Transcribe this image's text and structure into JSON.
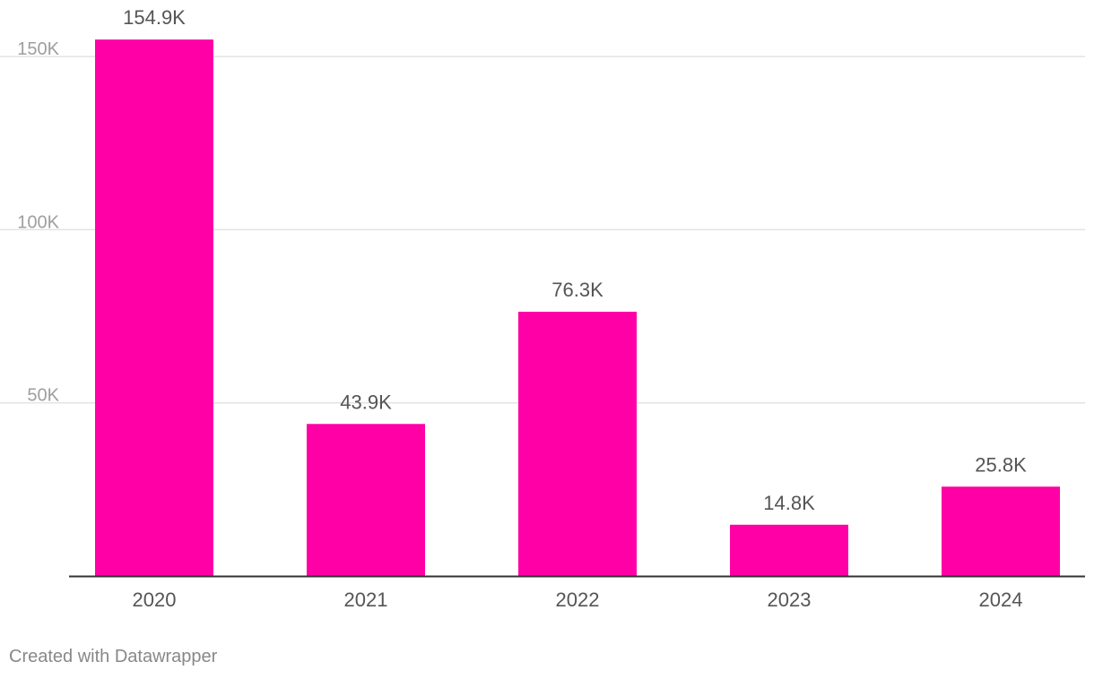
{
  "chart_data": {
    "type": "bar",
    "categories": [
      "2020",
      "2021",
      "2022",
      "2023",
      "2024"
    ],
    "values": [
      154900,
      43900,
      76300,
      14800,
      25800
    ],
    "value_labels": [
      "154.9K",
      "43.9K",
      "76.3K",
      "14.8K",
      "25.8K"
    ],
    "ylim": [
      0,
      160000
    ],
    "y_ticks": [
      50000,
      100000,
      150000
    ],
    "y_tick_labels": [
      "50K",
      "100K",
      "150K"
    ],
    "grid": true,
    "colors": {
      "bar": "#ff00a6",
      "grid": "#e3e3e3",
      "axis": "#333333",
      "tick_label": "#9e9e9e",
      "category_label": "#555555",
      "value_label": "#555555"
    }
  },
  "footer": {
    "credit": "Created with Datawrapper"
  }
}
